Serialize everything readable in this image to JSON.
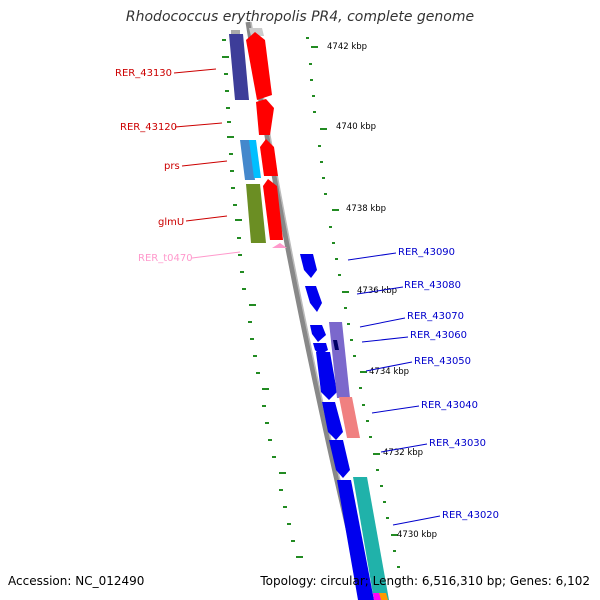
{
  "title": "Rhodococcus erythropolis PR4, complete genome",
  "footer": {
    "accession": "Accession: NC_012490",
    "topology": "Topology: circular; Length: 6,516,310 bp; Genes: 6,102"
  },
  "colors": {
    "red_label": "#cc0000",
    "blue_label": "#0000cc",
    "pink_label": "#ff99cc",
    "tick_green": "#228B22",
    "backbone": "#888888"
  },
  "ticks": [
    "4742 kbp",
    "4740 kbp",
    "4738 kbp",
    "4736 kbp",
    "4734 kbp",
    "4732 kbp",
    "4730 kbp"
  ],
  "left_labels": [
    "RER_43130",
    "RER_43120",
    "prs",
    "glmU",
    "RER_t0470"
  ],
  "right_labels": [
    "RER_43090",
    "RER_43080",
    "RER_43070",
    "RER_43060",
    "RER_43050",
    "RER_43040",
    "RER_43030",
    "RER_43020"
  ]
}
